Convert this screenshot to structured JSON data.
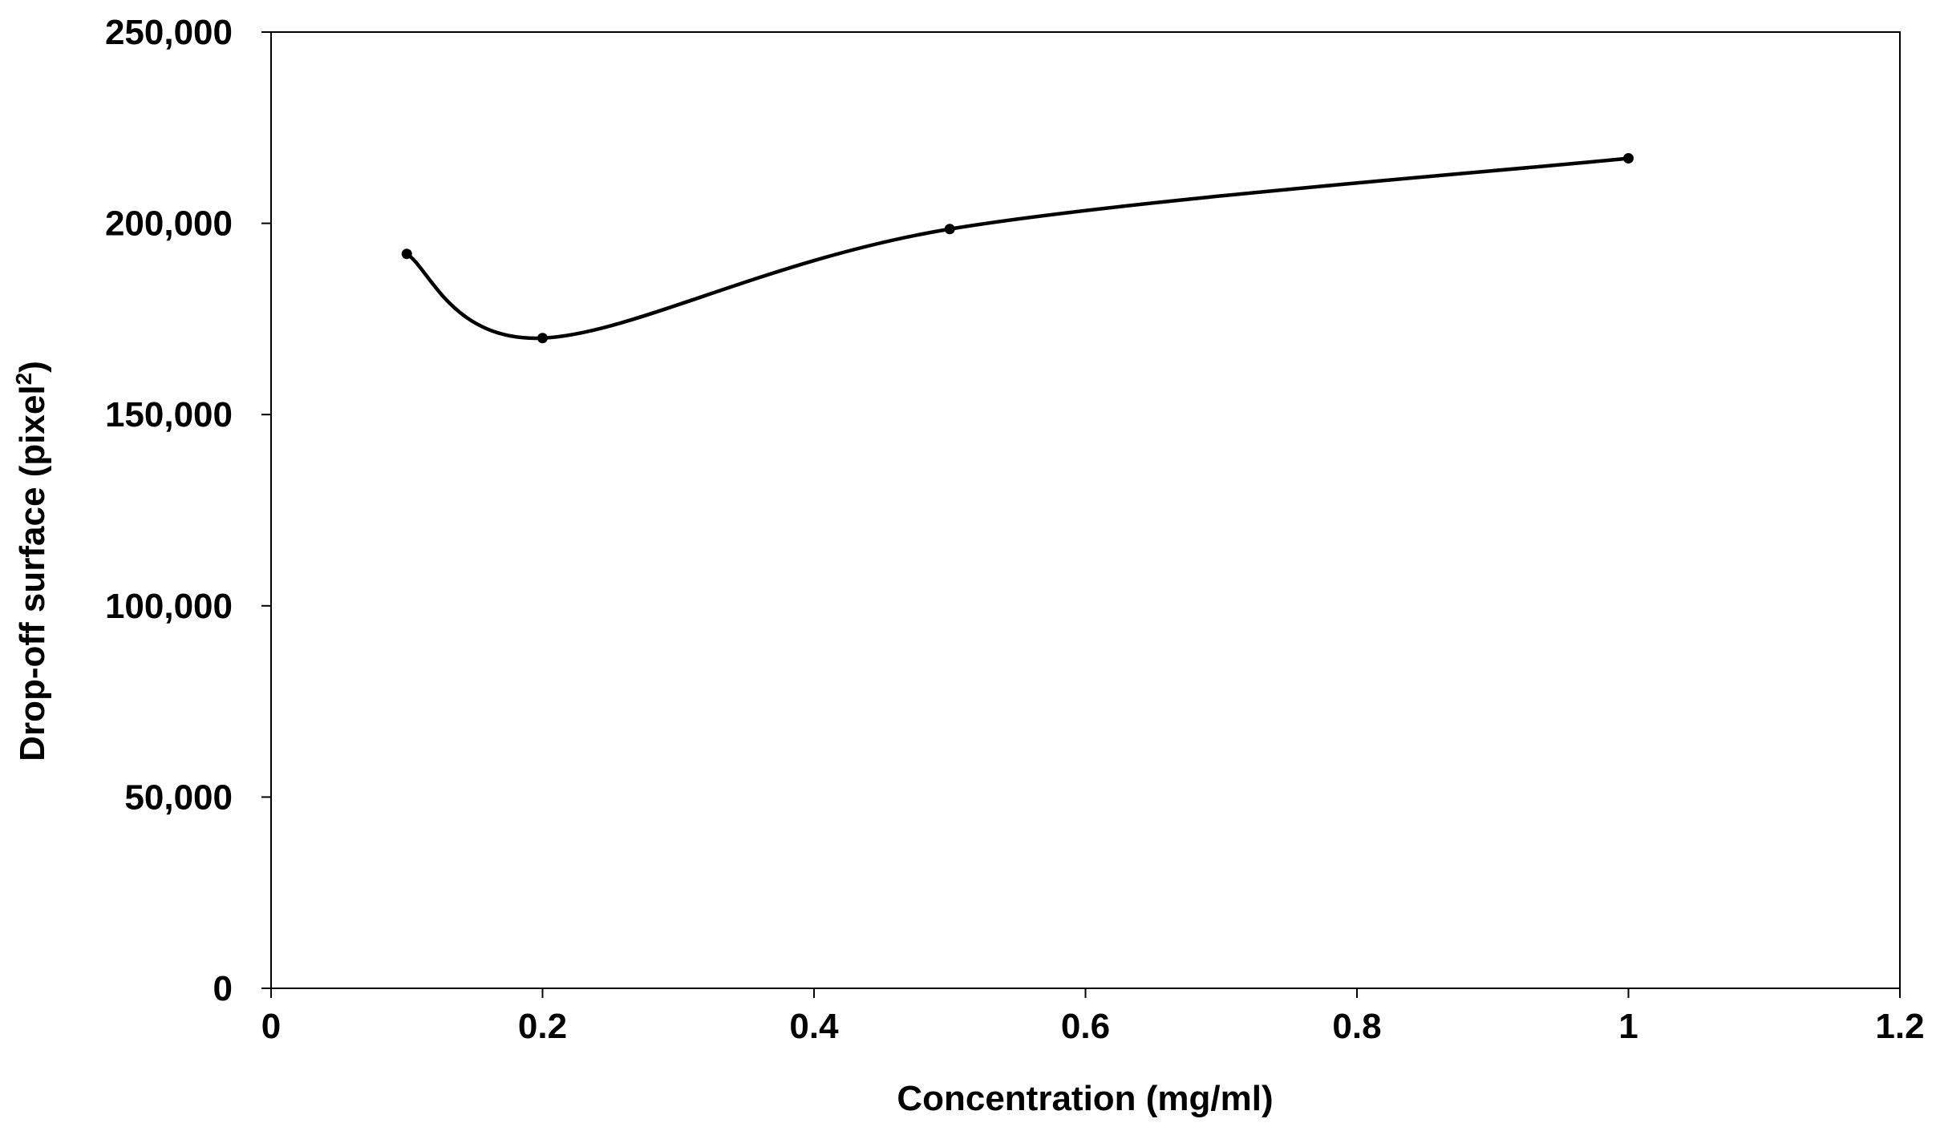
{
  "chart_data": {
    "type": "line",
    "smooth": true,
    "xlabel": "Concentration (mg/ml)",
    "ylabel": "Drop-off surface  (pixel",
    "ylabel_sup": "2",
    "ylabel_close": ")",
    "xlim": [
      0,
      1.2
    ],
    "ylim": [
      0,
      250000
    ],
    "x_ticks": [
      0,
      0.2,
      0.4,
      0.6,
      0.8,
      1,
      1.2
    ],
    "x_tick_labels": [
      "0",
      "0.2",
      "0.4",
      "0.6",
      "0.8",
      "1",
      "1.2"
    ],
    "y_ticks": [
      0,
      50000,
      100000,
      150000,
      200000,
      250000
    ],
    "y_tick_labels": [
      "0",
      "50,000",
      "100,000",
      "150,000",
      "200,000",
      "250,000"
    ],
    "grid": false,
    "legend": "none",
    "series": [
      {
        "x": [
          0.1,
          0.2,
          0.5,
          1.0
        ],
        "y": [
          192000,
          170000,
          198500,
          217000
        ],
        "color": "#000000"
      }
    ]
  }
}
